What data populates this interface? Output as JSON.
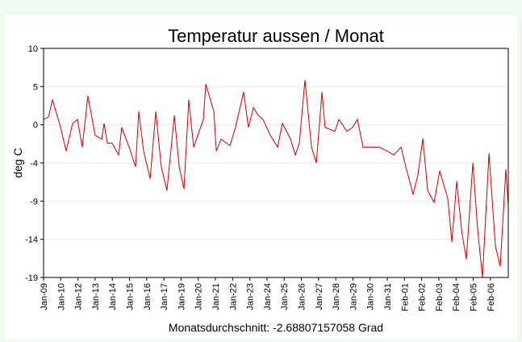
{
  "chart_data": {
    "type": "line",
    "title": "Temperatur aussen / Monat",
    "y_label": "deg C",
    "x_label": "Monatsdurchschnitt: -2.68807157058 Grad",
    "xlim": [
      0,
      27.04
    ],
    "xticks": [
      {
        "value": 0,
        "label": "Jan-09"
      },
      {
        "value": 1,
        "label": "Jan-10"
      },
      {
        "value": 2,
        "label": "Jan-12"
      },
      {
        "value": 3,
        "label": "Jan-13"
      },
      {
        "value": 4,
        "label": "Jan-14"
      },
      {
        "value": 5,
        "label": "Jan-15"
      },
      {
        "value": 6,
        "label": "Jan-16"
      },
      {
        "value": 7,
        "label": "Jan-17"
      },
      {
        "value": 8,
        "label": "Jan-19"
      },
      {
        "value": 9,
        "label": "Jan-20"
      },
      {
        "value": 10,
        "label": "Jan-21"
      },
      {
        "value": 11,
        "label": "Jan-22"
      },
      {
        "value": 12,
        "label": "Jan-23"
      },
      {
        "value": 13,
        "label": "Jan-24"
      },
      {
        "value": 14,
        "label": "Jan-25"
      },
      {
        "value": 15,
        "label": "Jan-26"
      },
      {
        "value": 16,
        "label": "Jan-27"
      },
      {
        "value": 17,
        "label": "Jan-28"
      },
      {
        "value": 18,
        "label": "Jan-29"
      },
      {
        "value": 19,
        "label": "Jan-30"
      },
      {
        "value": 20,
        "label": "Jan-31"
      },
      {
        "value": 21,
        "label": "Feb-01"
      },
      {
        "value": 22,
        "label": "Feb-02"
      },
      {
        "value": 23,
        "label": "Feb-03"
      },
      {
        "value": 24,
        "label": "Feb-04"
      },
      {
        "value": 25,
        "label": "Feb-05"
      },
      {
        "value": 26,
        "label": "Feb-06"
      }
    ],
    "ylim": [
      -19,
      10
    ],
    "yticks": [
      -19,
      {
        "value": -14.1667,
        "label": "-14"
      },
      {
        "value": -9.3333,
        "label": "-9"
      },
      {
        "value": -4.5,
        "label": "-4"
      },
      {
        "value": 0.3333,
        "label": "0"
      },
      {
        "value": 5.1667,
        "label": "5"
      },
      10
    ],
    "grid": true,
    "x": [
      0,
      0.28,
      0.52,
      0.99,
      1.31,
      1.69,
      1.97,
      2.25,
      2.58,
      3.0,
      3.38,
      3.52,
      3.71,
      3.99,
      4.37,
      4.55,
      4.98,
      5.35,
      5.54,
      5.82,
      6.2,
      6.53,
      6.85,
      7.18,
      7.61,
      7.89,
      8.17,
      8.45,
      8.73,
      9.3,
      9.44,
      9.91,
      10.05,
      10.33,
      10.85,
      11.17,
      11.64,
      11.92,
      12.21,
      12.49,
      12.77,
      13.19,
      13.62,
      13.9,
      14.37,
      14.65,
      14.88,
      15.21,
      15.59,
      15.87,
      16.2,
      16.38,
      16.95,
      17.18,
      17.65,
      17.98,
      18.26,
      18.59,
      18.97,
      19.53,
      20.0,
      20.38,
      20.8,
      21.08,
      21.5,
      21.78,
      22.07,
      22.35,
      22.72,
      23.05,
      23.52,
      23.76,
      24.04,
      24.32,
      24.6,
      24.98,
      25.26,
      25.54,
      25.92,
      26.29,
      26.57,
      26.9,
      27.04
    ],
    "series": [
      {
        "name": "Temperatur",
        "color": "#cc0000",
        "values": [
          1,
          1.3,
          3.5,
          0,
          -3,
          0.5,
          1,
          -2.5,
          4,
          -1,
          -1.5,
          0.5,
          -2,
          -2,
          -3.5,
          0,
          -2.5,
          -5,
          2,
          -3,
          -6.5,
          2,
          -5,
          -8,
          1.5,
          -5,
          -7.8,
          3.5,
          -2.5,
          1,
          5.5,
          2,
          -3,
          -1.5,
          -2.3,
          0,
          4.5,
          0,
          2.5,
          1.5,
          1,
          -1,
          -2.5,
          0.5,
          -1.5,
          -3.5,
          -2,
          6,
          -2.5,
          -4.5,
          4.5,
          0,
          -0.5,
          1,
          -0.5,
          0,
          1,
          -2.5,
          -2.5,
          -2.5,
          -3,
          -3.5,
          -2.5,
          -5,
          -8.5,
          -6,
          -1.4,
          -8,
          -9.5,
          -5.5,
          -9,
          -14.5,
          -6.8,
          -13,
          -16.7,
          -4.5,
          -13,
          -19,
          -3.3,
          -15,
          -17.6,
          -5.3,
          -10
        ]
      }
    ]
  }
}
